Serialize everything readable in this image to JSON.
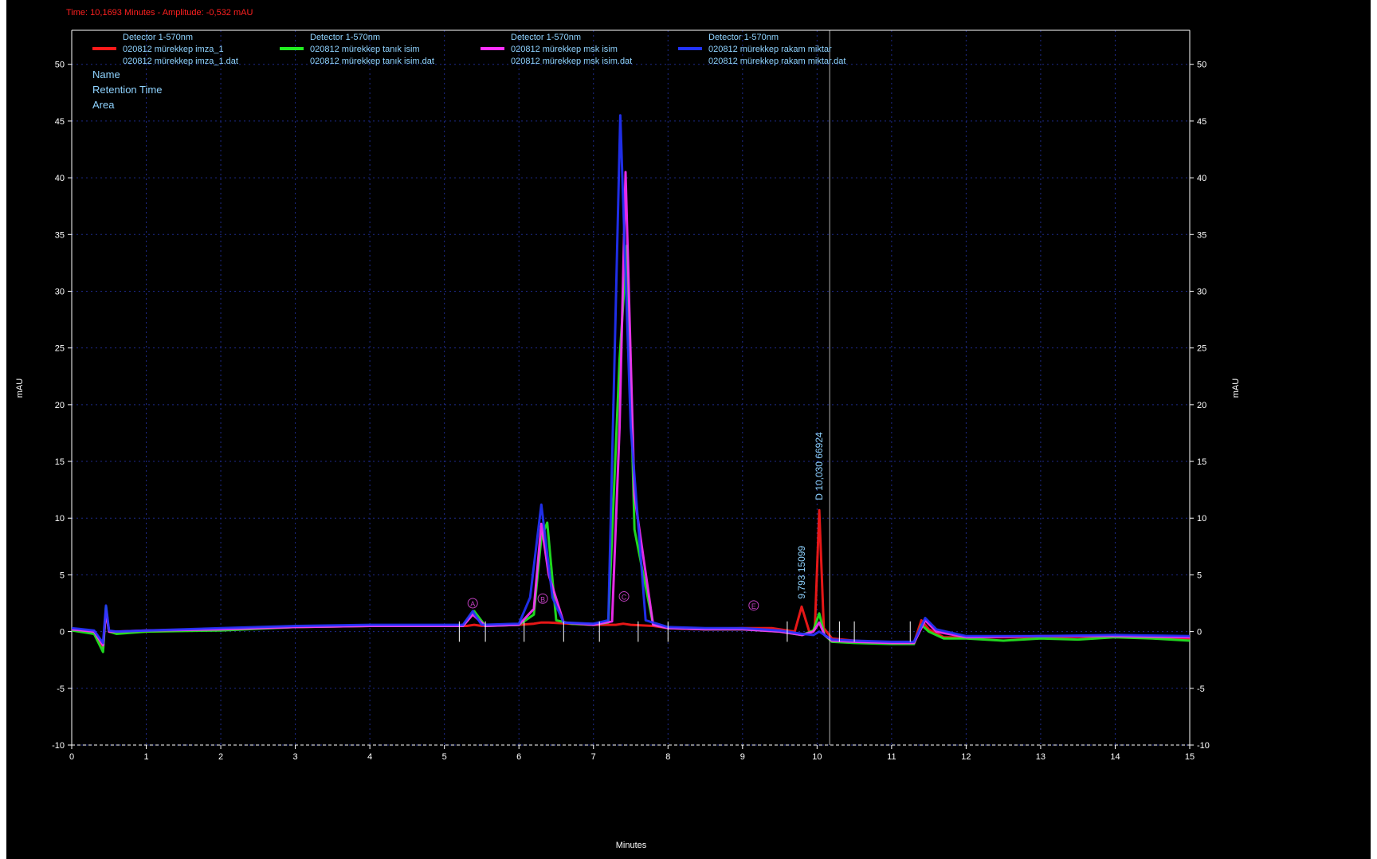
{
  "status_bar": {
    "time_label": "Time:",
    "time_value": "10,1693 Minutes",
    "amplitude_label": "Amplitude:",
    "amplitude_value": "-0,532 mAU"
  },
  "legend_extra": [
    "Name",
    "Retention Time",
    "Area"
  ],
  "colors": {
    "background": "#000000",
    "axis": "#ffffff",
    "grid": "#1e2a8a",
    "label_text": "#8fd3ff",
    "status_text": "#ff2020",
    "cursor_line": "#ffffff",
    "peak_marker": "#c040c0"
  },
  "chart_data": {
    "type": "line",
    "title": "",
    "xlabel": "Minutes",
    "ylabel": "mAU",
    "y2label": "mAU",
    "xlim": [
      0,
      15
    ],
    "ylim": [
      -10,
      53
    ],
    "xticks": [
      0,
      1,
      2,
      3,
      4,
      5,
      6,
      7,
      8,
      9,
      10,
      11,
      12,
      13,
      14,
      15
    ],
    "yticks": [
      -10,
      -5,
      0,
      5,
      10,
      15,
      20,
      25,
      30,
      35,
      40,
      45,
      50
    ],
    "grid": true,
    "legend_position": "top",
    "cursor_x": 10.1693,
    "series": [
      {
        "detector": "Detector 1-570nm",
        "name": "020812 mürekkep imza_1",
        "file": "020812 mürekkep imza_1.dat",
        "color": "#ff1a1a",
        "x": [
          0,
          0.3,
          0.42,
          0.46,
          0.5,
          0.6,
          1,
          2,
          3,
          4,
          5,
          5.3,
          5.4,
          5.5,
          6,
          6.2,
          6.3,
          6.4,
          6.7,
          7,
          7.3,
          7.4,
          7.5,
          7.8,
          8,
          8.5,
          9,
          9.4,
          9.7,
          9.793,
          9.9,
          9.97,
          10.03,
          10.09,
          10.2,
          10.5,
          11,
          11.3,
          11.4,
          11.5,
          11.7,
          12,
          13,
          14,
          15
        ],
        "y": [
          0.2,
          0.0,
          -1.4,
          2.0,
          0.0,
          -0.1,
          0.0,
          0.2,
          0.4,
          0.5,
          0.5,
          0.5,
          0.6,
          0.5,
          0.6,
          0.7,
          0.8,
          0.8,
          0.7,
          0.6,
          0.6,
          0.7,
          0.6,
          0.5,
          0.3,
          0.2,
          0.3,
          0.3,
          0.0,
          2.2,
          -0.1,
          0.2,
          10.7,
          0.3,
          -0.6,
          -0.8,
          -1.0,
          -1.0,
          1.0,
          0.2,
          -0.5,
          -0.5,
          -0.5,
          -0.4,
          -0.6
        ]
      },
      {
        "detector": "Detector 1-570nm",
        "name": "020812 mürekkep tanık isim",
        "file": "020812 mürekkep tanık isim.dat",
        "color": "#22ee22",
        "x": [
          0,
          0.3,
          0.42,
          0.46,
          0.5,
          0.6,
          1,
          2,
          3,
          4,
          5,
          5.25,
          5.4,
          5.55,
          6,
          6.2,
          6.3,
          6.38,
          6.5,
          6.7,
          7,
          7.2,
          7.35,
          7.45,
          7.55,
          7.8,
          8,
          8.5,
          9,
          9.5,
          9.8,
          9.95,
          10.03,
          10.1,
          10.2,
          10.5,
          11,
          11.3,
          11.4,
          11.5,
          11.7,
          12,
          12.5,
          13,
          13.5,
          14,
          14.5,
          15
        ],
        "y": [
          0.1,
          -0.2,
          -1.8,
          2.2,
          0.0,
          -0.2,
          0.0,
          0.1,
          0.4,
          0.5,
          0.5,
          0.5,
          1.8,
          0.5,
          0.6,
          1.5,
          8.3,
          9.6,
          1.0,
          0.7,
          0.6,
          0.8,
          24.0,
          34.0,
          9.0,
          0.6,
          0.3,
          0.2,
          0.2,
          0.0,
          -0.3,
          0.1,
          1.6,
          -0.3,
          -0.9,
          -1.0,
          -1.1,
          -1.1,
          0.6,
          0.0,
          -0.6,
          -0.6,
          -0.8,
          -0.6,
          -0.7,
          -0.5,
          -0.6,
          -0.8
        ]
      },
      {
        "detector": "Detector 1-570nm",
        "name": "020812 mürekkep msk isim",
        "file": "020812 mürekkep msk isim.dat",
        "color": "#ff30ff",
        "x": [
          0,
          0.3,
          0.42,
          0.46,
          0.5,
          0.6,
          1,
          2,
          3,
          4,
          5,
          5.25,
          5.38,
          5.55,
          6,
          6.2,
          6.3,
          6.4,
          6.6,
          7,
          7.25,
          7.35,
          7.43,
          7.55,
          7.8,
          8,
          8.5,
          9,
          9.5,
          9.8,
          9.95,
          10.03,
          10.1,
          10.2,
          10.5,
          11,
          11.3,
          11.45,
          11.6,
          12,
          13,
          14,
          15
        ],
        "y": [
          0.2,
          0.0,
          -1.2,
          1.8,
          0.0,
          0.0,
          0.1,
          0.2,
          0.4,
          0.5,
          0.5,
          0.5,
          1.5,
          0.5,
          0.6,
          2.0,
          9.5,
          5.0,
          0.8,
          0.6,
          0.9,
          18.0,
          40.5,
          12.0,
          0.6,
          0.3,
          0.2,
          0.2,
          0.0,
          -0.3,
          0.0,
          0.8,
          -0.3,
          -0.8,
          -0.9,
          -1.0,
          -1.0,
          1.0,
          0.0,
          -0.5,
          -0.4,
          -0.4,
          -0.5
        ]
      },
      {
        "detector": "Detector 1-570nm",
        "name": "020812 mürekkep rakam miktar",
        "file": "020812 mürekkep rakam miktar.dat",
        "color": "#2233ff",
        "x": [
          0,
          0.3,
          0.42,
          0.46,
          0.5,
          0.6,
          1,
          2,
          3,
          4,
          5,
          5.25,
          5.38,
          5.5,
          6,
          6.15,
          6.3,
          6.45,
          6.6,
          7,
          7.2,
          7.36,
          7.5,
          7.7,
          8,
          8.5,
          9,
          9.5,
          9.8,
          9.95,
          10.03,
          10.1,
          10.2,
          10.5,
          11,
          11.3,
          11.45,
          11.6,
          12,
          13,
          14,
          15
        ],
        "y": [
          0.3,
          0.1,
          -1.0,
          2.3,
          0.1,
          0.0,
          0.1,
          0.3,
          0.5,
          0.6,
          0.6,
          0.6,
          1.8,
          0.6,
          0.7,
          3.0,
          11.2,
          3.0,
          0.8,
          0.7,
          1.0,
          45.5,
          18.0,
          1.0,
          0.4,
          0.3,
          0.3,
          0.1,
          -0.2,
          -0.3,
          0.0,
          -0.3,
          -0.7,
          -0.8,
          -0.9,
          -0.9,
          1.2,
          0.2,
          -0.4,
          -0.4,
          -0.3,
          -0.4
        ]
      }
    ],
    "peak_markers": [
      {
        "label": "A",
        "x": 5.38,
        "y": 1.8
      },
      {
        "label": "B",
        "x": 6.32,
        "y": 2.2
      },
      {
        "label": "C",
        "x": 7.41,
        "y": 2.4
      },
      {
        "label": "E",
        "x": 9.15,
        "y": 1.6
      }
    ],
    "peak_annotations": [
      {
        "label": "9,793  15099",
        "x": 9.793,
        "y": 2.6
      },
      {
        "label": "D  10,030  66924",
        "x": 10.03,
        "y": 11.3
      }
    ]
  }
}
